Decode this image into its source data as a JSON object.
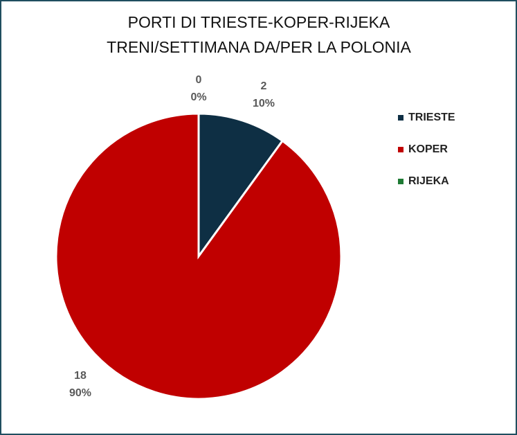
{
  "chart_data": {
    "type": "pie",
    "title": "PORTI DI TRIESTE-KOPER-RIJEKA",
    "subtitle": "TRENI/SETTIMANA DA/PER LA POLONIA",
    "categories": [
      "TRIESTE",
      "KOPER",
      "RIJEKA"
    ],
    "values": [
      2,
      18,
      0
    ],
    "percentages": [
      {
        "value": 10,
        "label": "10%"
      },
      {
        "value": 90,
        "label": "90%"
      },
      {
        "value": 0,
        "label": "0%"
      }
    ],
    "colors": [
      "#0e2f44",
      "#c00000",
      "#1e7a34"
    ],
    "legend": "right"
  }
}
